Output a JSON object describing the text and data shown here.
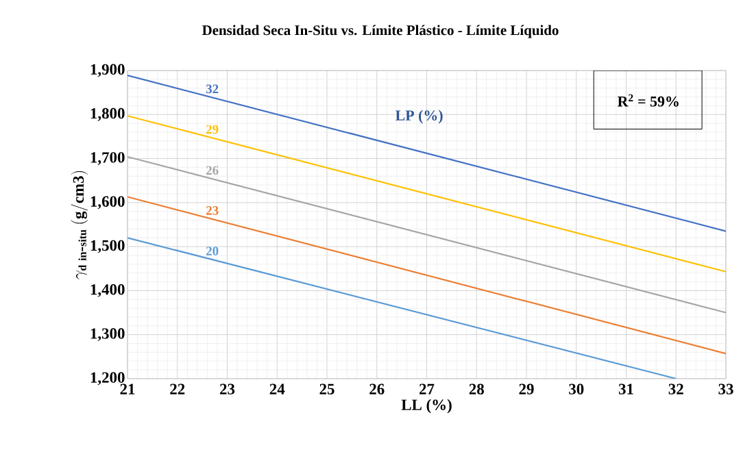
{
  "chart_data": {
    "type": "line",
    "title": "Densidad Seca In-Situ vs. Límite Plástico - Límite Líquido",
    "xlabel": "LL (%)",
    "ylabel": "\\gamma_{\\mathbf{d\\ in\\mbox{-}situ}}\\ \\mathbf{(g/cm3)}",
    "series": [
      {
        "name": "32",
        "color": "#4472c4",
        "x": [
          21,
          33
        ],
        "values": [
          1889,
          1535
        ]
      },
      {
        "name": "29",
        "color": "#ffc000",
        "x": [
          21,
          33
        ],
        "values": [
          1797,
          1443
        ]
      },
      {
        "name": "26",
        "color": "#a5a5a5",
        "x": [
          21,
          33
        ],
        "values": [
          1704,
          1350
        ]
      },
      {
        "name": "23",
        "color": "#ed7d31",
        "x": [
          21,
          33
        ],
        "values": [
          1613,
          1257
        ]
      },
      {
        "name": "20",
        "color": "#5b9bd5",
        "x": [
          21,
          32
        ],
        "values": [
          1520,
          1200
        ]
      }
    ],
    "xlim": [
      21,
      33
    ],
    "xticks": [
      21,
      22,
      23,
      24,
      25,
      26,
      27,
      28,
      29,
      30,
      31,
      32,
      33
    ],
    "ylim": [
      1200,
      1900
    ],
    "yticks": [
      {
        "value": 1200,
        "label": "1,200"
      },
      {
        "value": 1300,
        "label": "1,300"
      },
      {
        "value": 1400,
        "label": "1,400"
      },
      {
        "value": 1500,
        "label": "1,500"
      },
      {
        "value": 1600,
        "label": "1,600"
      },
      {
        "value": 1700,
        "label": "1,700"
      },
      {
        "value": 1800,
        "label": "1,800"
      },
      {
        "value": 1900,
        "label": "1,900"
      }
    ],
    "annotations": [
      "LP (%)",
      "R$^{2}$ = 59%"
    ],
    "grid": true,
    "marker": "none",
    "line_style": "solid"
  }
}
